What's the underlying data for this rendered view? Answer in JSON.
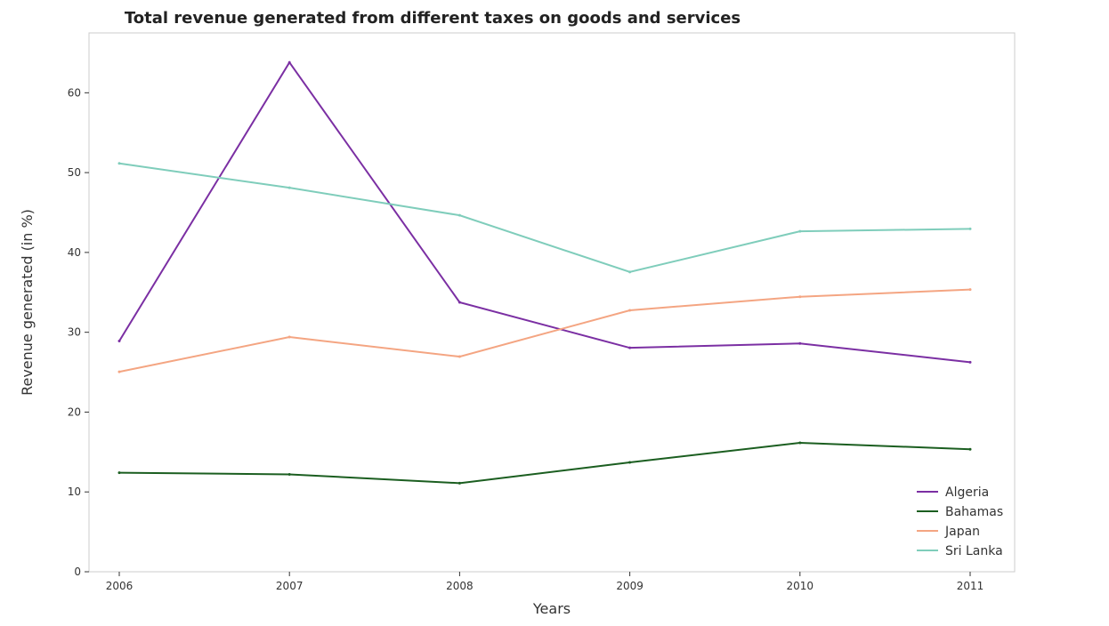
{
  "chart_data": {
    "type": "line",
    "title": "Total revenue generated from different taxes on goods and services",
    "xlabel": "Years",
    "ylabel": "Revenue generated (in %)",
    "x": [
      "2006",
      "2007",
      "2008",
      "2009",
      "2010",
      "2011"
    ],
    "ylim": [
      0,
      67.5
    ],
    "yticks": [
      0,
      10,
      20,
      30,
      40,
      50,
      60
    ],
    "grid": false,
    "legend_position": "bottom-right",
    "series": [
      {
        "name": "Algeria",
        "color": "#7b2fa3",
        "values": [
          28.9,
          63.8,
          33.75,
          28.05,
          28.6,
          26.25
        ]
      },
      {
        "name": "Bahamas",
        "color": "#1b5e20",
        "values": [
          12.4,
          12.2,
          11.1,
          13.7,
          16.15,
          15.35
        ]
      },
      {
        "name": "Japan",
        "color": "#f4a582",
        "values": [
          25.05,
          29.4,
          26.95,
          32.75,
          34.45,
          35.35
        ]
      },
      {
        "name": "Sri Lanka",
        "color": "#7fcdbb",
        "values": [
          51.15,
          48.1,
          44.65,
          37.55,
          42.65,
          42.95
        ]
      }
    ]
  }
}
